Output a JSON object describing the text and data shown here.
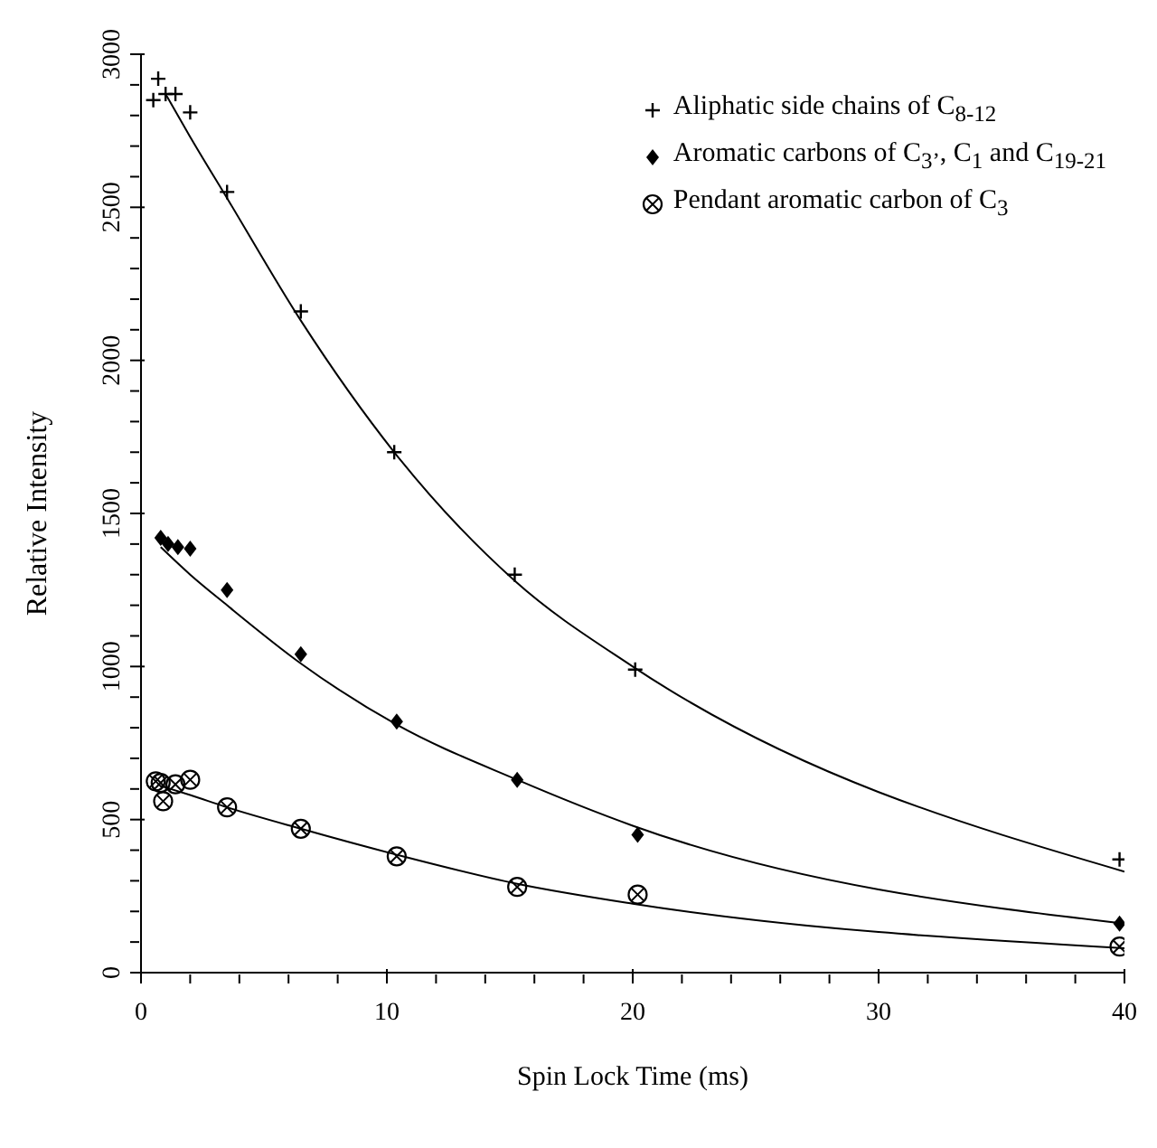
{
  "chart_data": {
    "type": "scatter",
    "xlabel": "Spin Lock Time (ms)",
    "ylabel": "Relative Intensity",
    "xlim": [
      0,
      40
    ],
    "ylim": [
      0,
      3000
    ],
    "xticks": [
      0,
      {
        "value": 2,
        "label": null
      },
      {
        "value": 4,
        "label": null
      },
      {
        "value": 6,
        "label": null
      },
      {
        "value": 8,
        "label": null
      },
      10,
      {
        "value": 12,
        "label": null
      },
      {
        "value": 14,
        "label": null
      },
      {
        "value": 16,
        "label": null
      },
      {
        "value": 18,
        "label": null
      },
      20,
      {
        "value": 22,
        "label": null
      },
      {
        "value": 24,
        "label": null
      },
      {
        "value": 26,
        "label": null
      },
      {
        "value": 28,
        "label": null
      },
      30,
      {
        "value": 32,
        "label": null
      },
      {
        "value": 34,
        "label": null
      },
      {
        "value": 36,
        "label": null
      },
      {
        "value": 38,
        "label": null
      },
      40
    ],
    "yticks": [
      0,
      {
        "value": 100,
        "label": null
      },
      {
        "value": 200,
        "label": null
      },
      {
        "value": 300,
        "label": null
      },
      {
        "value": 400,
        "label": null
      },
      500,
      {
        "value": 600,
        "label": null
      },
      {
        "value": 700,
        "label": null
      },
      {
        "value": 800,
        "label": null
      },
      {
        "value": 900,
        "label": null
      },
      1000,
      {
        "value": 1100,
        "label": null
      },
      {
        "value": 1200,
        "label": null
      },
      {
        "value": 1300,
        "label": null
      },
      {
        "value": 1400,
        "label": null
      },
      1500,
      {
        "value": 1600,
        "label": null
      },
      {
        "value": 1700,
        "label": null
      },
      {
        "value": 1800,
        "label": null
      },
      {
        "value": 1900,
        "label": null
      },
      2000,
      {
        "value": 2100,
        "label": null
      },
      {
        "value": 2200,
        "label": null
      },
      {
        "value": 2300,
        "label": null
      },
      {
        "value": 2400,
        "label": null
      },
      2500,
      {
        "value": 2600,
        "label": null
      },
      {
        "value": 2700,
        "label": null
      },
      {
        "value": 2800,
        "label": null
      },
      {
        "value": 2900,
        "label": null
      },
      3000
    ],
    "grid": false,
    "legend": "top right",
    "series": [
      {
        "name": "Aliphatic side chains of C$_{8-12}$",
        "marker": "cross",
        "color": "#000000",
        "x": [
          0.5,
          0.7,
          1.0,
          1.4,
          2.0,
          3.5,
          6.5,
          10.3,
          15.2,
          20.1,
          39.8
        ],
        "values": [
          2850,
          2920,
          2870,
          2870,
          2810,
          2550,
          2160,
          1700,
          1300,
          990,
          370
        ]
      },
      {
        "name": "Aromatic carbons of C$_{3’}$, C$_{1}$ and C$_{19-21}$",
        "marker": "diamond",
        "color": "#000000",
        "x": [
          0.8,
          1.1,
          1.5,
          2.0,
          3.5,
          6.5,
          10.4,
          15.3,
          20.2,
          39.8
        ],
        "values": [
          1420,
          1400,
          1390,
          1385,
          1250,
          1040,
          820,
          630,
          450,
          160
        ]
      },
      {
        "name": "Pendant aromatic carbon of C$_{3}$",
        "marker": "circle",
        "color": "#000000",
        "x": [
          0.6,
          0.8,
          0.9,
          1.4,
          2.0,
          3.5,
          6.5,
          10.4,
          15.3,
          20.2,
          39.8
        ],
        "values": [
          625,
          620,
          560,
          615,
          630,
          540,
          470,
          380,
          280,
          255,
          85
        ]
      },
      {
        "type": "line",
        "color": "#000000",
        "x": [
          1.0,
          2.0,
          3.5,
          6.5,
          10.3,
          15.2,
          20.0,
          40.0
        ],
        "values": [
          2870,
          2730,
          2530,
          2130,
          1700,
          1280,
          1000,
          330
        ]
      },
      {
        "type": "line",
        "color": "#000000",
        "x": [
          0.8,
          2.0,
          3.5,
          6.5,
          10.4,
          15.3,
          20.0,
          40.0
        ],
        "values": [
          1390,
          1300,
          1200,
          1010,
          810,
          630,
          480,
          160
        ]
      },
      {
        "type": "line",
        "color": "#000000",
        "x": [
          0.8,
          2.0,
          3.5,
          6.5,
          10.4,
          15.3,
          20.0,
          40.0
        ],
        "values": [
          610,
          580,
          540,
          470,
          385,
          290,
          225,
          80
        ]
      }
    ]
  }
}
